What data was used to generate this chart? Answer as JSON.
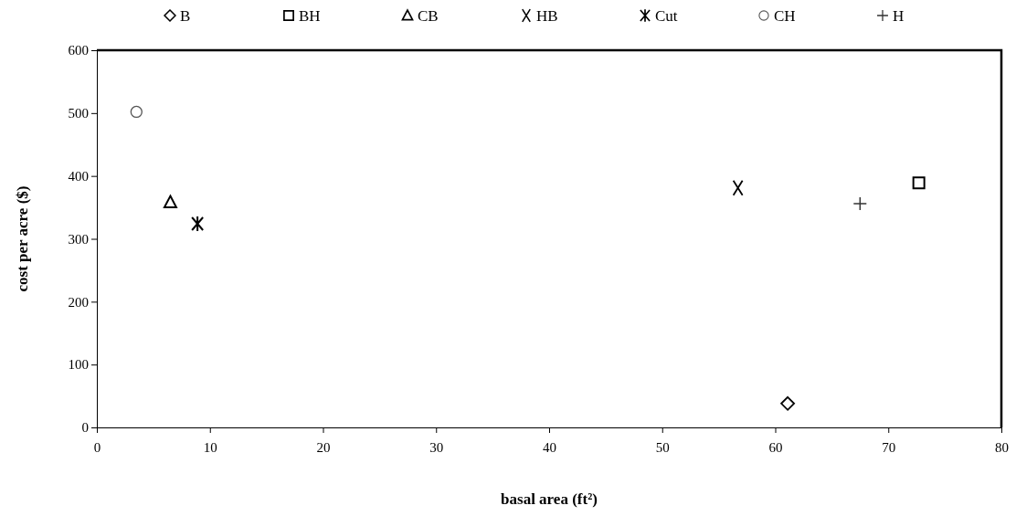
{
  "chart_data": {
    "type": "scatter",
    "xlabel": "basal area (ft²)",
    "ylabel": "cost per acre ($)",
    "xlim": [
      0,
      80
    ],
    "xticks": [
      0,
      10,
      20,
      30,
      40,
      50,
      60,
      70,
      80
    ],
    "ylim": [
      0,
      600
    ],
    "yticks": [
      0,
      100,
      200,
      300,
      400,
      500,
      600
    ],
    "grid": false,
    "legend": "top",
    "series": [
      {
        "name": "B",
        "color": "#000000",
        "marker": "diamond",
        "x": [
          61.1
        ],
        "values": [
          38
        ]
      },
      {
        "name": "BH",
        "color": "#000000",
        "marker": "square",
        "x": [
          72.7
        ],
        "values": [
          389
        ]
      },
      {
        "name": "CB",
        "color": "#000000",
        "marker": "triangle",
        "x": [
          6.5
        ],
        "values": [
          358
        ]
      },
      {
        "name": "HB",
        "color": "#000000",
        "marker": "x",
        "x": [
          56.7
        ],
        "values": [
          381
        ]
      },
      {
        "name": "Cut",
        "color": "#000000",
        "marker": "cross",
        "x": [
          8.9
        ],
        "values": [
          324
        ]
      },
      {
        "name": "CH",
        "color": "#555555",
        "marker": "circle",
        "x": [
          3.5
        ],
        "values": [
          502
        ]
      },
      {
        "name": "H",
        "color": "#333333",
        "marker": "plus",
        "x": [
          67.5
        ],
        "values": [
          356
        ]
      }
    ]
  }
}
